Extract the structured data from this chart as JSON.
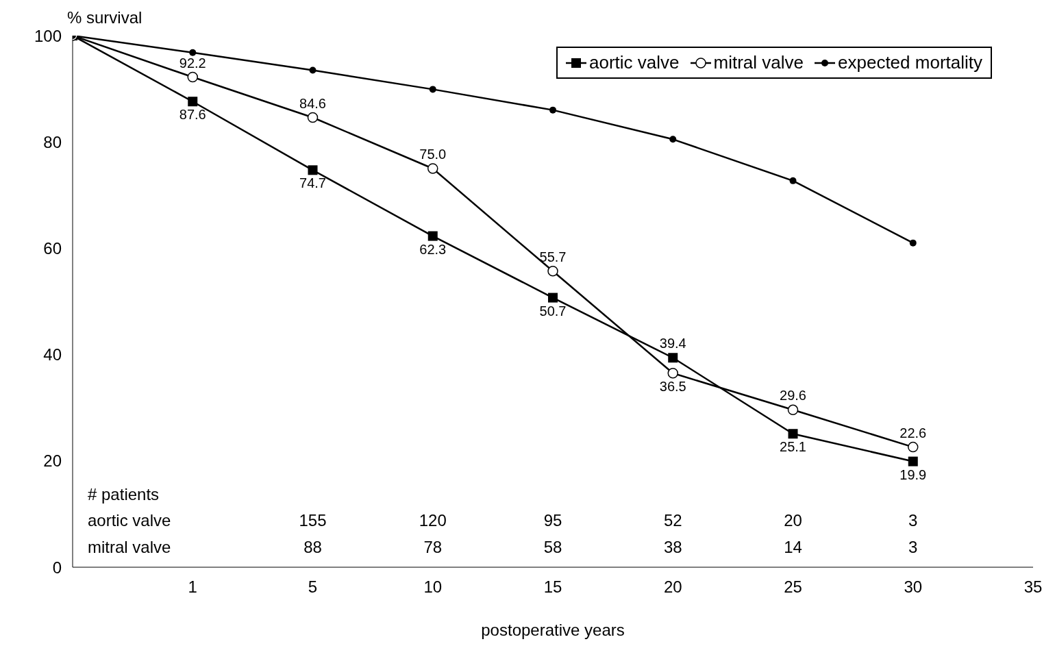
{
  "chart_data": {
    "type": "line",
    "ylabel": "% survival",
    "xlabel": "postoperative years",
    "categories": [
      null,
      "1",
      "5",
      "10",
      "15",
      "20",
      "25",
      "30",
      "35"
    ],
    "ylim": [
      0,
      100
    ],
    "yticks": [
      0,
      20,
      40,
      60,
      80,
      100
    ],
    "grid": false,
    "legend": "top right",
    "series": [
      {
        "name": "aortic valve",
        "color": "#000000",
        "marker": "square",
        "values": [
          100,
          87.6,
          74.7,
          62.3,
          50.7,
          39.4,
          25.1,
          19.9,
          null
        ],
        "value_labels": [
          null,
          "87.6",
          "74.7",
          "62.3",
          "50.7",
          "39.4",
          "25.1",
          "19.9",
          null
        ]
      },
      {
        "name": "mitral valve",
        "color": "#000000",
        "marker": "circle",
        "values": [
          100,
          92.2,
          84.6,
          75.0,
          55.7,
          36.5,
          29.6,
          22.6,
          null
        ],
        "value_labels": [
          null,
          "92.2",
          "84.6",
          "75.0",
          "55.7",
          "36.5",
          "29.6",
          "22.6",
          null
        ]
      },
      {
        "name": "expected mortality",
        "color": "#000000",
        "marker": "dot",
        "values": [
          100,
          96.8,
          93.5,
          89.9,
          86.0,
          80.5,
          72.7,
          61.0,
          null
        ]
      }
    ],
    "annotations": [
      "# patients",
      "aortic valve",
      "155",
      "120",
      "95",
      "52",
      "20",
      "3",
      "mitral valve",
      "88",
      "78",
      "58",
      "38",
      "14",
      "3"
    ]
  }
}
